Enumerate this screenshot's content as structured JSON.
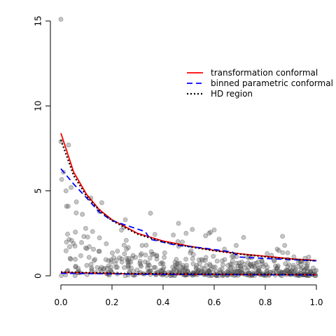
{
  "chart_data": {
    "type": "scatter",
    "title": "",
    "xlabel": "",
    "ylabel": "",
    "xlim": [
      0,
      1
    ],
    "ylim": [
      0,
      15
    ],
    "x_ticks": [
      "0.0",
      "0.2",
      "0.4",
      "0.6",
      "0.8",
      "1.0"
    ],
    "y_ticks": [
      "0",
      "5",
      "10",
      "15"
    ],
    "legend": {
      "position": "top-right",
      "entries": [
        {
          "label": "transformation conformal",
          "color": "#ff0000",
          "style": "solid"
        },
        {
          "label": "binned parametric conformal",
          "color": "#0000ff",
          "style": "dashed"
        },
        {
          "label": "HD region",
          "color": "#000000",
          "style": "dotted"
        }
      ]
    },
    "points_seed": 7,
    "points_count": 520,
    "highlight_points": [
      {
        "x": 0.0,
        "y": 15.1
      },
      {
        "x": 0.0,
        "y": 7.9
      },
      {
        "x": 0.03,
        "y": 7.7
      },
      {
        "x": 0.01,
        "y": 6.1
      },
      {
        "x": 0.04,
        "y": 5.2
      },
      {
        "x": 0.02,
        "y": 5.0
      },
      {
        "x": 0.16,
        "y": 4.3
      },
      {
        "x": 0.44,
        "y": 2.4
      },
      {
        "x": 0.49,
        "y": 2.5
      },
      {
        "x": 0.58,
        "y": 2.5
      },
      {
        "x": 0.6,
        "y": 2.7
      },
      {
        "x": 0.15,
        "y": 3.8
      },
      {
        "x": 0.06,
        "y": 3.7
      },
      {
        "x": 0.97,
        "y": 1.1
      }
    ],
    "series": [
      {
        "name": "transformation conformal",
        "color": "#ff0000",
        "style": "solid",
        "lower": [
          [
            0,
            0.2
          ],
          [
            0.25,
            0.12
          ],
          [
            0.5,
            0.09
          ],
          [
            0.75,
            0.07
          ],
          [
            1.0,
            0.06
          ]
        ],
        "upper": [
          [
            0,
            8.4
          ],
          [
            0.05,
            6.1
          ],
          [
            0.1,
            4.8
          ],
          [
            0.15,
            3.9
          ],
          [
            0.2,
            3.3
          ],
          [
            0.3,
            2.5
          ],
          [
            0.4,
            2.05
          ],
          [
            0.5,
            1.75
          ],
          [
            0.6,
            1.5
          ],
          [
            0.7,
            1.3
          ],
          [
            0.8,
            1.15
          ],
          [
            0.9,
            1.0
          ],
          [
            1.0,
            0.9
          ]
        ]
      },
      {
        "name": "binned parametric conformal",
        "color": "#0000ff",
        "style": "dashed",
        "lower": [
          [
            0,
            0.15
          ],
          [
            0.33,
            0.09
          ],
          [
            0.66,
            0.07
          ],
          [
            1.0,
            0.05
          ]
        ],
        "upper": [
          [
            0,
            6.3
          ],
          [
            0.05,
            5.4
          ],
          [
            0.1,
            4.6
          ],
          [
            0.15,
            3.75
          ],
          [
            0.2,
            3.25
          ],
          [
            0.28,
            2.85
          ],
          [
            0.33,
            2.6
          ],
          [
            0.35,
            2.15
          ],
          [
            0.45,
            1.8
          ],
          [
            0.55,
            1.65
          ],
          [
            0.67,
            1.4
          ],
          [
            0.7,
            1.1
          ],
          [
            0.8,
            1.02
          ],
          [
            0.9,
            0.95
          ],
          [
            1.0,
            0.88
          ]
        ]
      },
      {
        "name": "HD region",
        "color": "#000000",
        "style": "dotted",
        "lower": [
          [
            0,
            0.22
          ],
          [
            0.25,
            0.13
          ],
          [
            0.5,
            0.1
          ],
          [
            0.75,
            0.08
          ],
          [
            1.0,
            0.07
          ]
        ],
        "upper": [
          [
            0,
            8.0
          ],
          [
            0.05,
            5.9
          ],
          [
            0.1,
            4.7
          ],
          [
            0.15,
            3.85
          ],
          [
            0.2,
            3.25
          ],
          [
            0.3,
            2.45
          ],
          [
            0.4,
            2.0
          ],
          [
            0.5,
            1.72
          ],
          [
            0.6,
            1.48
          ],
          [
            0.7,
            1.28
          ],
          [
            0.8,
            1.12
          ],
          [
            0.9,
            0.98
          ],
          [
            1.0,
            0.88
          ]
        ]
      }
    ]
  }
}
